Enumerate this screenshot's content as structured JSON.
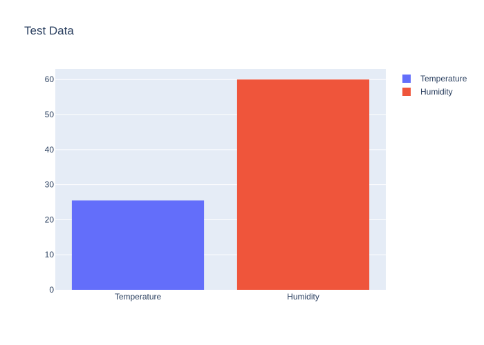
{
  "chart_data": {
    "type": "bar",
    "title": "Test Data",
    "xlabel": "",
    "ylabel": "",
    "categories": [
      "Temperature",
      "Humidity"
    ],
    "series": [
      {
        "name": "Temperature",
        "values": [
          25.5,
          null
        ],
        "color": "#636efa"
      },
      {
        "name": "Humidity",
        "values": [
          null,
          60
        ],
        "color": "#ef553b"
      }
    ],
    "ylim": [
      0,
      63
    ],
    "yticks": [
      0,
      10,
      20,
      30,
      40,
      50,
      60
    ],
    "grid": true,
    "legend_position": "top-right"
  },
  "colors": {
    "plot_background": "#e5ecf6",
    "gridline": "#ffffff",
    "text": "#2a3f5f"
  }
}
